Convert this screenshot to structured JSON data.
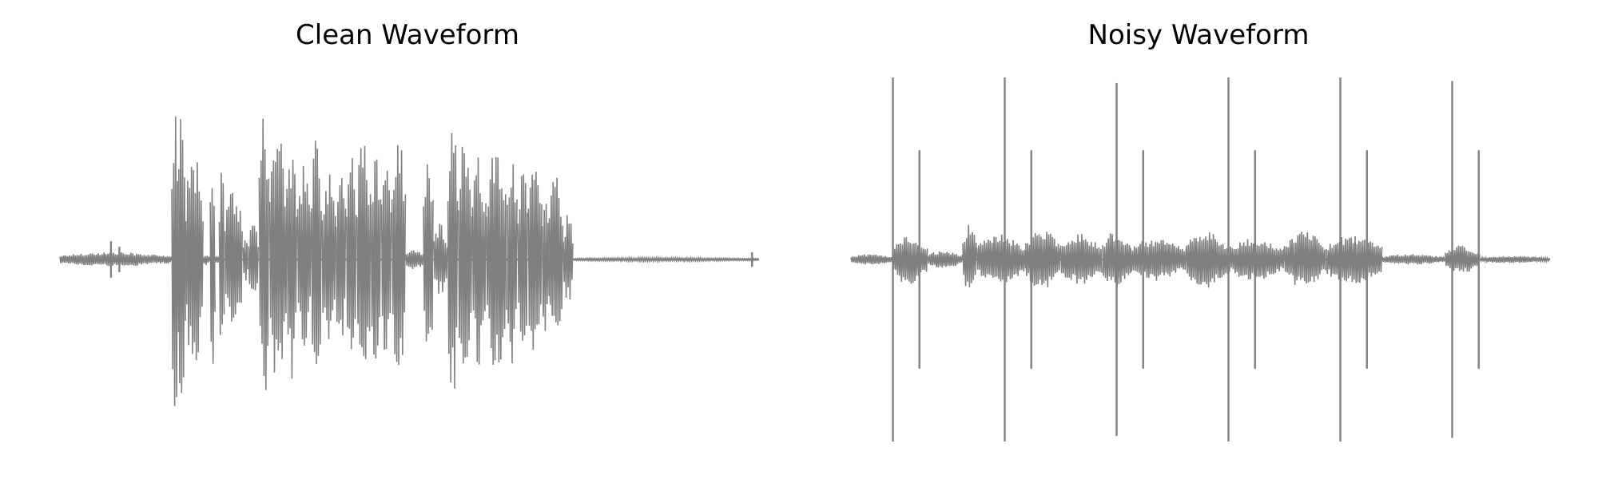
{
  "chart_data": [
    {
      "type": "line",
      "title": "Clean Waveform",
      "xlabel": "",
      "ylabel": "",
      "axes": "off",
      "grid": false,
      "color": "#808080",
      "xlim": [
        0,
        1
      ],
      "ylim": [
        -1,
        1
      ],
      "segments": [
        {
          "x": [
            0.0,
            0.16
          ],
          "amp": 0.04
        },
        {
          "x": [
            0.16,
            0.17
          ],
          "amp": 0.9
        },
        {
          "x": [
            0.17,
            0.18
          ],
          "amp": 1.0
        },
        {
          "x": [
            0.18,
            0.205
          ],
          "amp": 0.62
        },
        {
          "x": [
            0.205,
            0.215
          ],
          "amp": 0.03
        },
        {
          "x": [
            0.215,
            0.222
          ],
          "amp": 0.64
        },
        {
          "x": [
            0.222,
            0.228
          ],
          "amp": 0.03
        },
        {
          "x": [
            0.228,
            0.236
          ],
          "amp": 0.52
        },
        {
          "x": [
            0.236,
            0.262
          ],
          "amp": 0.42
        },
        {
          "x": [
            0.262,
            0.27
          ],
          "amp": 0.12
        },
        {
          "x": [
            0.27,
            0.285
          ],
          "amp": 0.2
        },
        {
          "x": [
            0.285,
            0.3
          ],
          "amp": 0.82
        },
        {
          "x": [
            0.3,
            0.325
          ],
          "amp": 0.72
        },
        {
          "x": [
            0.325,
            0.34
          ],
          "amp": 0.66
        },
        {
          "x": [
            0.34,
            0.36
          ],
          "amp": 0.55
        },
        {
          "x": [
            0.36,
            0.375
          ],
          "amp": 0.7
        },
        {
          "x": [
            0.375,
            0.395
          ],
          "amp": 0.48
        },
        {
          "x": [
            0.395,
            0.41
          ],
          "amp": 0.52
        },
        {
          "x": [
            0.41,
            0.425
          ],
          "amp": 0.58
        },
        {
          "x": [
            0.425,
            0.445
          ],
          "amp": 0.7
        },
        {
          "x": [
            0.445,
            0.46
          ],
          "amp": 0.64
        },
        {
          "x": [
            0.46,
            0.475
          ],
          "amp": 0.55
        },
        {
          "x": [
            0.475,
            0.495
          ],
          "amp": 0.7
        },
        {
          "x": [
            0.495,
            0.52
          ],
          "amp": 0.06
        },
        {
          "x": [
            0.52,
            0.535
          ],
          "amp": 0.6
        },
        {
          "x": [
            0.535,
            0.555
          ],
          "amp": 0.2
        },
        {
          "x": [
            0.555,
            0.57
          ],
          "amp": 0.78
        },
        {
          "x": [
            0.57,
            0.59
          ],
          "amp": 0.7
        },
        {
          "x": [
            0.59,
            0.61
          ],
          "amp": 0.6
        },
        {
          "x": [
            0.61,
            0.64
          ],
          "amp": 0.66
        },
        {
          "x": [
            0.64,
            0.655
          ],
          "amp": 0.6
        },
        {
          "x": [
            0.655,
            0.67
          ],
          "amp": 0.55
        },
        {
          "x": [
            0.67,
            0.69
          ],
          "amp": 0.62
        },
        {
          "x": [
            0.69,
            0.7
          ],
          "amp": 0.45
        },
        {
          "x": [
            0.7,
            0.72
          ],
          "amp": 0.5
        },
        {
          "x": [
            0.72,
            0.735
          ],
          "amp": 0.25
        },
        {
          "x": [
            0.735,
            1.0
          ],
          "amp": 0.01
        }
      ],
      "spikes": [
        {
          "x": 0.073,
          "y": 0.1
        },
        {
          "x": 0.085,
          "y": 0.07
        },
        {
          "x": 0.99,
          "y": 0.04
        }
      ]
    },
    {
      "type": "line",
      "title": "Noisy Waveform",
      "xlabel": "",
      "ylabel": "",
      "axes": "off",
      "grid": false,
      "color": "#808080",
      "xlim": [
        0,
        1
      ],
      "ylim": [
        -1,
        1
      ],
      "segments": [
        {
          "x": [
            0.0,
            0.06
          ],
          "amp": 0.03
        },
        {
          "x": [
            0.06,
            0.11
          ],
          "amp": 0.14
        },
        {
          "x": [
            0.11,
            0.16
          ],
          "amp": 0.05
        },
        {
          "x": [
            0.16,
            0.18
          ],
          "amp": 0.2
        },
        {
          "x": [
            0.18,
            0.25
          ],
          "amp": 0.14
        },
        {
          "x": [
            0.25,
            0.3
          ],
          "amp": 0.17
        },
        {
          "x": [
            0.3,
            0.36
          ],
          "amp": 0.14
        },
        {
          "x": [
            0.36,
            0.4
          ],
          "amp": 0.16
        },
        {
          "x": [
            0.4,
            0.48
          ],
          "amp": 0.12
        },
        {
          "x": [
            0.48,
            0.54
          ],
          "amp": 0.16
        },
        {
          "x": [
            0.54,
            0.62
          ],
          "amp": 0.12
        },
        {
          "x": [
            0.62,
            0.68
          ],
          "amp": 0.16
        },
        {
          "x": [
            0.68,
            0.76
          ],
          "amp": 0.14
        },
        {
          "x": [
            0.76,
            0.85
          ],
          "amp": 0.03
        },
        {
          "x": [
            0.85,
            0.9
          ],
          "amp": 0.08
        },
        {
          "x": [
            0.9,
            1.0
          ],
          "amp": 0.02
        }
      ],
      "spikes": [
        {
          "x": 0.06,
          "y": 1.0
        },
        {
          "x": 0.22,
          "y": 1.0
        },
        {
          "x": 0.38,
          "y": 0.97
        },
        {
          "x": 0.54,
          "y": 1.0
        },
        {
          "x": 0.7,
          "y": 1.0
        },
        {
          "x": 0.86,
          "y": 0.98
        },
        {
          "x": 0.098,
          "y": 0.6
        },
        {
          "x": 0.258,
          "y": 0.6
        },
        {
          "x": 0.418,
          "y": 0.6
        },
        {
          "x": 0.578,
          "y": 0.6
        },
        {
          "x": 0.738,
          "y": 0.6
        },
        {
          "x": 0.898,
          "y": 0.6
        }
      ]
    }
  ]
}
